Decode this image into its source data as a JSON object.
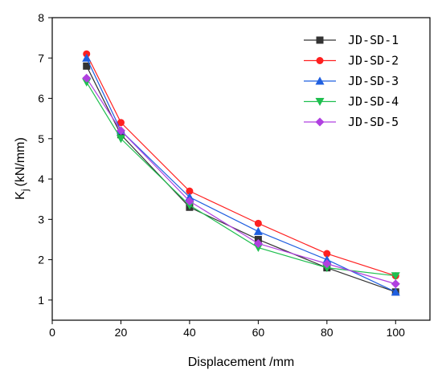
{
  "chart_data": {
    "type": "line",
    "x": [
      10,
      20,
      40,
      60,
      80,
      100
    ],
    "xlabel": "Displacement /mm",
    "ylabel": "K",
    "ylabel_sub": "j",
    "ylabel_unit": "(kN/mm)",
    "xlim": [
      0,
      110
    ],
    "ylim": [
      0.5,
      8
    ],
    "xticks": [
      0,
      20,
      40,
      60,
      80,
      100
    ],
    "yticks": [
      1,
      2,
      3,
      4,
      5,
      6,
      7,
      8
    ],
    "grid": false,
    "legend_position": "top-right",
    "series": [
      {
        "name": "JD-SD-1",
        "color": "#333333",
        "marker": "square",
        "values": [
          6.8,
          5.1,
          3.3,
          2.5,
          1.8,
          1.2
        ]
      },
      {
        "name": "JD-SD-2",
        "color": "#ff2020",
        "marker": "circle",
        "values": [
          7.1,
          5.4,
          3.7,
          2.9,
          2.15,
          1.6
        ]
      },
      {
        "name": "JD-SD-3",
        "color": "#1f5fe0",
        "marker": "triangle-up",
        "values": [
          7.0,
          5.2,
          3.55,
          2.7,
          2.0,
          1.2
        ]
      },
      {
        "name": "JD-SD-4",
        "color": "#1fbf4f",
        "marker": "triangle-down",
        "values": [
          6.4,
          5.0,
          3.35,
          2.3,
          1.8,
          1.6
        ]
      },
      {
        "name": "JD-SD-5",
        "color": "#b040e0",
        "marker": "diamond",
        "values": [
          6.5,
          5.2,
          3.45,
          2.4,
          1.9,
          1.4
        ]
      }
    ]
  }
}
